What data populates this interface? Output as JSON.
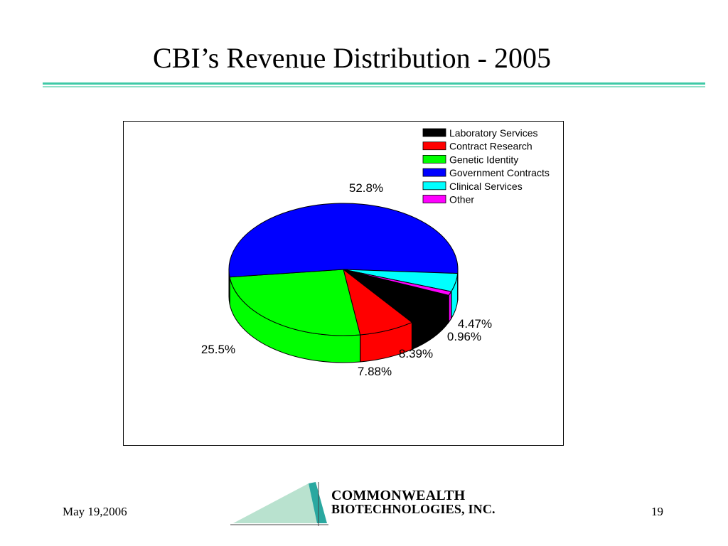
{
  "slide": {
    "title": "CBI’s Revenue Distribution - 2005",
    "date": "May 19,2006",
    "page_number": "19"
  },
  "logo": {
    "line1": "COMMONWEALTH",
    "line2": "BIOTECHNOLOGIES, INC."
  },
  "chart_data": {
    "type": "pie",
    "title": "",
    "legend_position": "top-right",
    "style": "3d-exploded-none",
    "series": [
      {
        "name": "Laboratory Services",
        "value": 8.39,
        "label": "8.39%",
        "color": "#000000"
      },
      {
        "name": "Contract Research",
        "value": 7.88,
        "label": "7.88%",
        "color": "#ff0000"
      },
      {
        "name": "Genetic Identity",
        "value": 25.5,
        "label": "25.5%",
        "color": "#00ff00"
      },
      {
        "name": "Government Contracts",
        "value": 52.8,
        "label": "52.8%",
        "color": "#0000ff"
      },
      {
        "name": "Clinical Services",
        "value": 4.47,
        "label": "4.47%",
        "color": "#00ffff"
      },
      {
        "name": "Other",
        "value": 0.96,
        "label": "0.96%",
        "color": "#ff00ff"
      }
    ]
  }
}
